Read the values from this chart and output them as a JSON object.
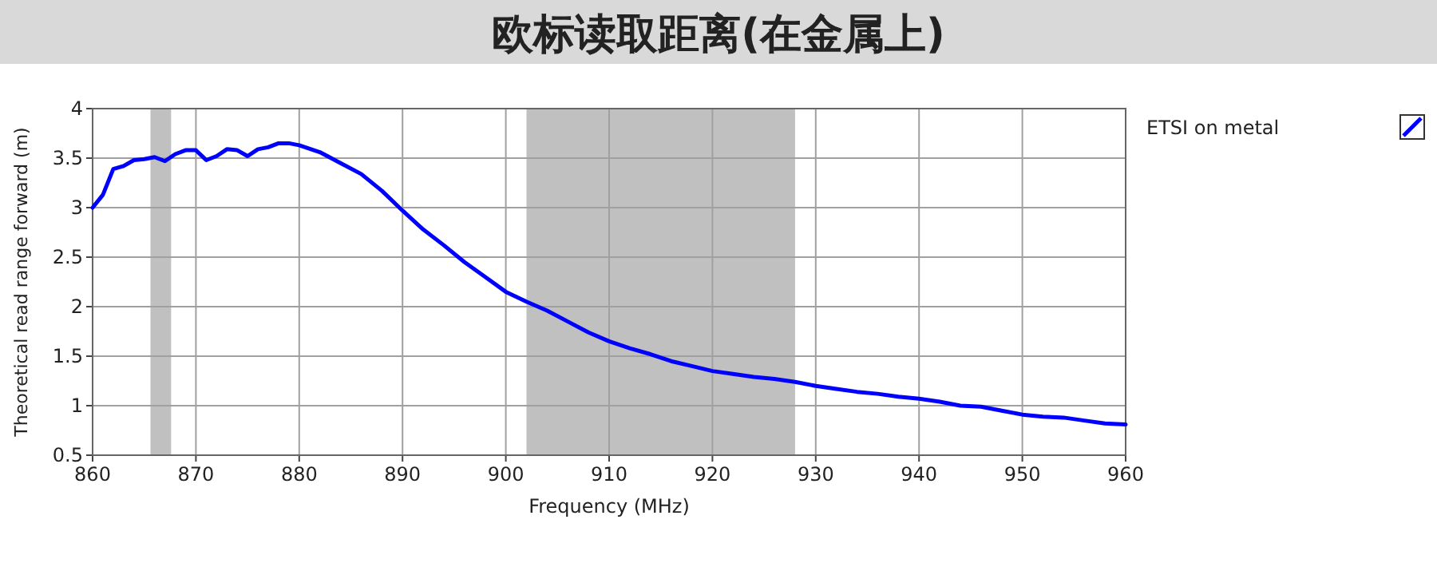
{
  "chart_data": {
    "type": "line",
    "title": "欧标读取距离(在金属上)",
    "xlabel": "Frequency (MHz)",
    "ylabel": "Theoretical read range forward (m)",
    "x": [
      860,
      861,
      862,
      863,
      864,
      865,
      866,
      867,
      868,
      869,
      870,
      871,
      872,
      873,
      874,
      875,
      876,
      877,
      878,
      879,
      880,
      882,
      884,
      886,
      888,
      890,
      892,
      894,
      896,
      898,
      900,
      902,
      904,
      906,
      908,
      910,
      912,
      914,
      916,
      918,
      920,
      922,
      924,
      926,
      928,
      930,
      932,
      934,
      936,
      938,
      940,
      942,
      944,
      946,
      948,
      950,
      952,
      954,
      956,
      958,
      960
    ],
    "series": [
      {
        "name": "ETSI on metal",
        "color": "#0000ff",
        "values": [
          3.0,
          3.13,
          3.39,
          3.42,
          3.48,
          3.49,
          3.51,
          3.47,
          3.54,
          3.58,
          3.58,
          3.48,
          3.52,
          3.59,
          3.58,
          3.52,
          3.59,
          3.61,
          3.65,
          3.65,
          3.63,
          3.56,
          3.45,
          3.34,
          3.17,
          2.97,
          2.78,
          2.62,
          2.45,
          2.3,
          2.15,
          2.05,
          1.96,
          1.85,
          1.74,
          1.65,
          1.58,
          1.52,
          1.45,
          1.4,
          1.35,
          1.32,
          1.29,
          1.27,
          1.24,
          1.2,
          1.17,
          1.14,
          1.12,
          1.09,
          1.07,
          1.04,
          1.0,
          0.99,
          0.95,
          0.91,
          0.89,
          0.88,
          0.85,
          0.82,
          0.81
        ]
      }
    ],
    "xlim": [
      860,
      960
    ],
    "xticks": [
      860,
      870,
      880,
      890,
      900,
      910,
      920,
      930,
      940,
      950,
      960
    ],
    "ylim": [
      0.5,
      4
    ],
    "yticks": [
      0.5,
      1,
      1.5,
      2,
      2.5,
      3,
      3.5,
      4
    ],
    "bands": [
      {
        "axis": "x",
        "from": 865.6,
        "to": 867.6,
        "color": "#c0c0c0"
      },
      {
        "axis": "x",
        "from": 902,
        "to": 928,
        "color": "#c0c0c0"
      }
    ],
    "grid": true,
    "legend": "right",
    "marker": "none",
    "line_style": "solid"
  }
}
